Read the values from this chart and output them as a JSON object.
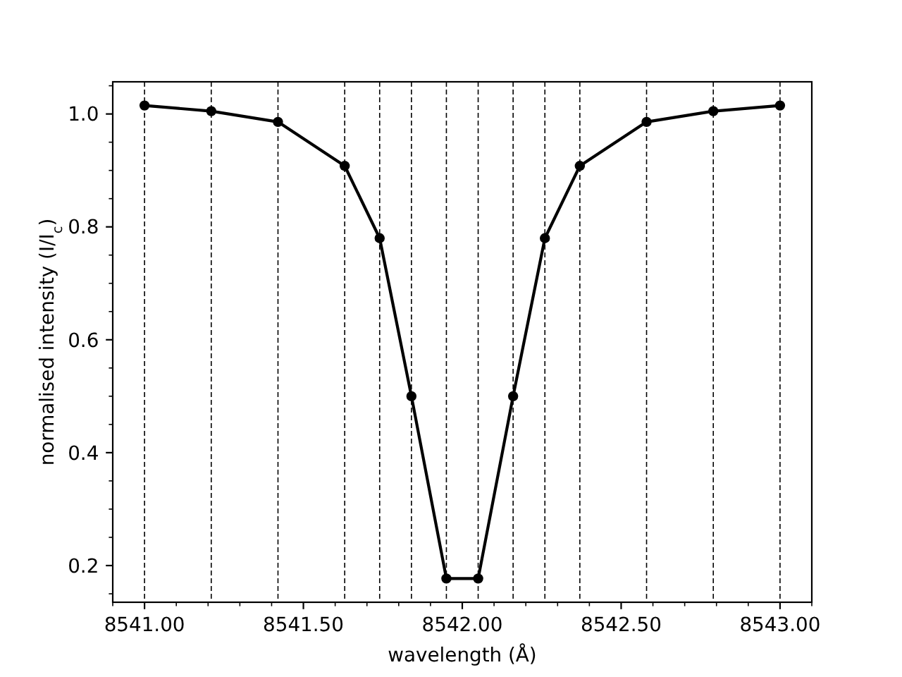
{
  "chart_data": {
    "type": "line",
    "xlabel": "wavelength (Å)",
    "ylabel": "normalised intensity (I/I$_{c}$)",
    "x": [
      8541.0,
      8541.21,
      8541.42,
      8541.63,
      8541.74,
      8541.84,
      8541.95,
      8542.05,
      8542.16,
      8542.26,
      8542.37,
      8542.58,
      8542.79,
      8543.0
    ],
    "series": [
      {
        "color": "#000000",
        "values": [
          1.015,
          1.005,
          0.986,
          0.908,
          0.78,
          0.5,
          0.177,
          0.177,
          0.5,
          0.78,
          0.908,
          0.986,
          1.005,
          1.015
        ]
      }
    ],
    "xlim": [
      8540.9,
      8543.1
    ],
    "ylim": [
      0.135,
      1.057
    ],
    "xticks": [
      {
        "value": 8540.9,
        "label": null
      },
      {
        "value": 8541,
        "label": "8541.00"
      },
      {
        "value": 8541.1,
        "label": null
      },
      {
        "value": 8541.2,
        "label": null
      },
      {
        "value": 8541.3,
        "label": null
      },
      {
        "value": 8541.4,
        "label": null
      },
      {
        "value": 8541.5,
        "label": "8541.50"
      },
      {
        "value": 8541.6,
        "label": null
      },
      {
        "value": 8541.7,
        "label": null
      },
      {
        "value": 8541.8,
        "label": null
      },
      {
        "value": 8541.9,
        "label": null
      },
      {
        "value": 8542,
        "label": "8542.00"
      },
      {
        "value": 8542.1,
        "label": null
      },
      {
        "value": 8542.2,
        "label": null
      },
      {
        "value": 8542.3,
        "label": null
      },
      {
        "value": 8542.4,
        "label": null
      },
      {
        "value": 8542.5,
        "label": "8542.50"
      },
      {
        "value": 8542.6,
        "label": null
      },
      {
        "value": 8542.7,
        "label": null
      },
      {
        "value": 8542.8,
        "label": null
      },
      {
        "value": 8542.9,
        "label": null
      },
      {
        "value": 8543,
        "label": "8543.00"
      },
      {
        "value": 8543.1,
        "label": null
      }
    ],
    "yticks": [
      {
        "value": 0.15,
        "label": null
      },
      0.2,
      {
        "value": 0.25,
        "label": null
      },
      {
        "value": 0.3,
        "label": null
      },
      {
        "value": 0.35,
        "label": null
      },
      0.4,
      {
        "value": 0.45,
        "label": null
      },
      {
        "value": 0.5,
        "label": null
      },
      {
        "value": 0.55,
        "label": null
      },
      0.6,
      {
        "value": 0.65,
        "label": null
      },
      {
        "value": 0.7,
        "label": null
      },
      {
        "value": 0.75,
        "label": null
      },
      0.8,
      {
        "value": 0.85,
        "label": null
      },
      {
        "value": 0.9,
        "label": null
      },
      {
        "value": 0.95,
        "label": null
      },
      {
        "value": 1,
        "label": "1.0"
      },
      {
        "value": 1.05,
        "label": null
      }
    ],
    "marker": "circle",
    "line_style": "solid",
    "ref_lines": [
      {
        "axis": "x",
        "value": 8541.0,
        "color": "#000000",
        "line_style": "dashed"
      },
      {
        "axis": "x",
        "value": 8541.21,
        "color": "#000000",
        "line_style": "dashed"
      },
      {
        "axis": "x",
        "value": 8541.42,
        "color": "#000000",
        "line_style": "dashed"
      },
      {
        "axis": "x",
        "value": 8541.63,
        "color": "#000000",
        "line_style": "dashed"
      },
      {
        "axis": "x",
        "value": 8541.74,
        "color": "#000000",
        "line_style": "dashed"
      },
      {
        "axis": "x",
        "value": 8541.84,
        "color": "#000000",
        "line_style": "dashed"
      },
      {
        "axis": "x",
        "value": 8541.95,
        "color": "#000000",
        "line_style": "dashed"
      },
      {
        "axis": "x",
        "value": 8542.05,
        "color": "#000000",
        "line_style": "dashed"
      },
      {
        "axis": "x",
        "value": 8542.16,
        "color": "#000000",
        "line_style": "dashed"
      },
      {
        "axis": "x",
        "value": 8542.26,
        "color": "#000000",
        "line_style": "dashed"
      },
      {
        "axis": "x",
        "value": 8542.37,
        "color": "#000000",
        "line_style": "dashed"
      },
      {
        "axis": "x",
        "value": 8542.58,
        "color": "#000000",
        "line_style": "dashed"
      },
      {
        "axis": "x",
        "value": 8542.79,
        "color": "#000000",
        "line_style": "dashed"
      },
      {
        "axis": "x",
        "value": 8543.0,
        "color": "#000000",
        "line_style": "dashed"
      }
    ]
  }
}
